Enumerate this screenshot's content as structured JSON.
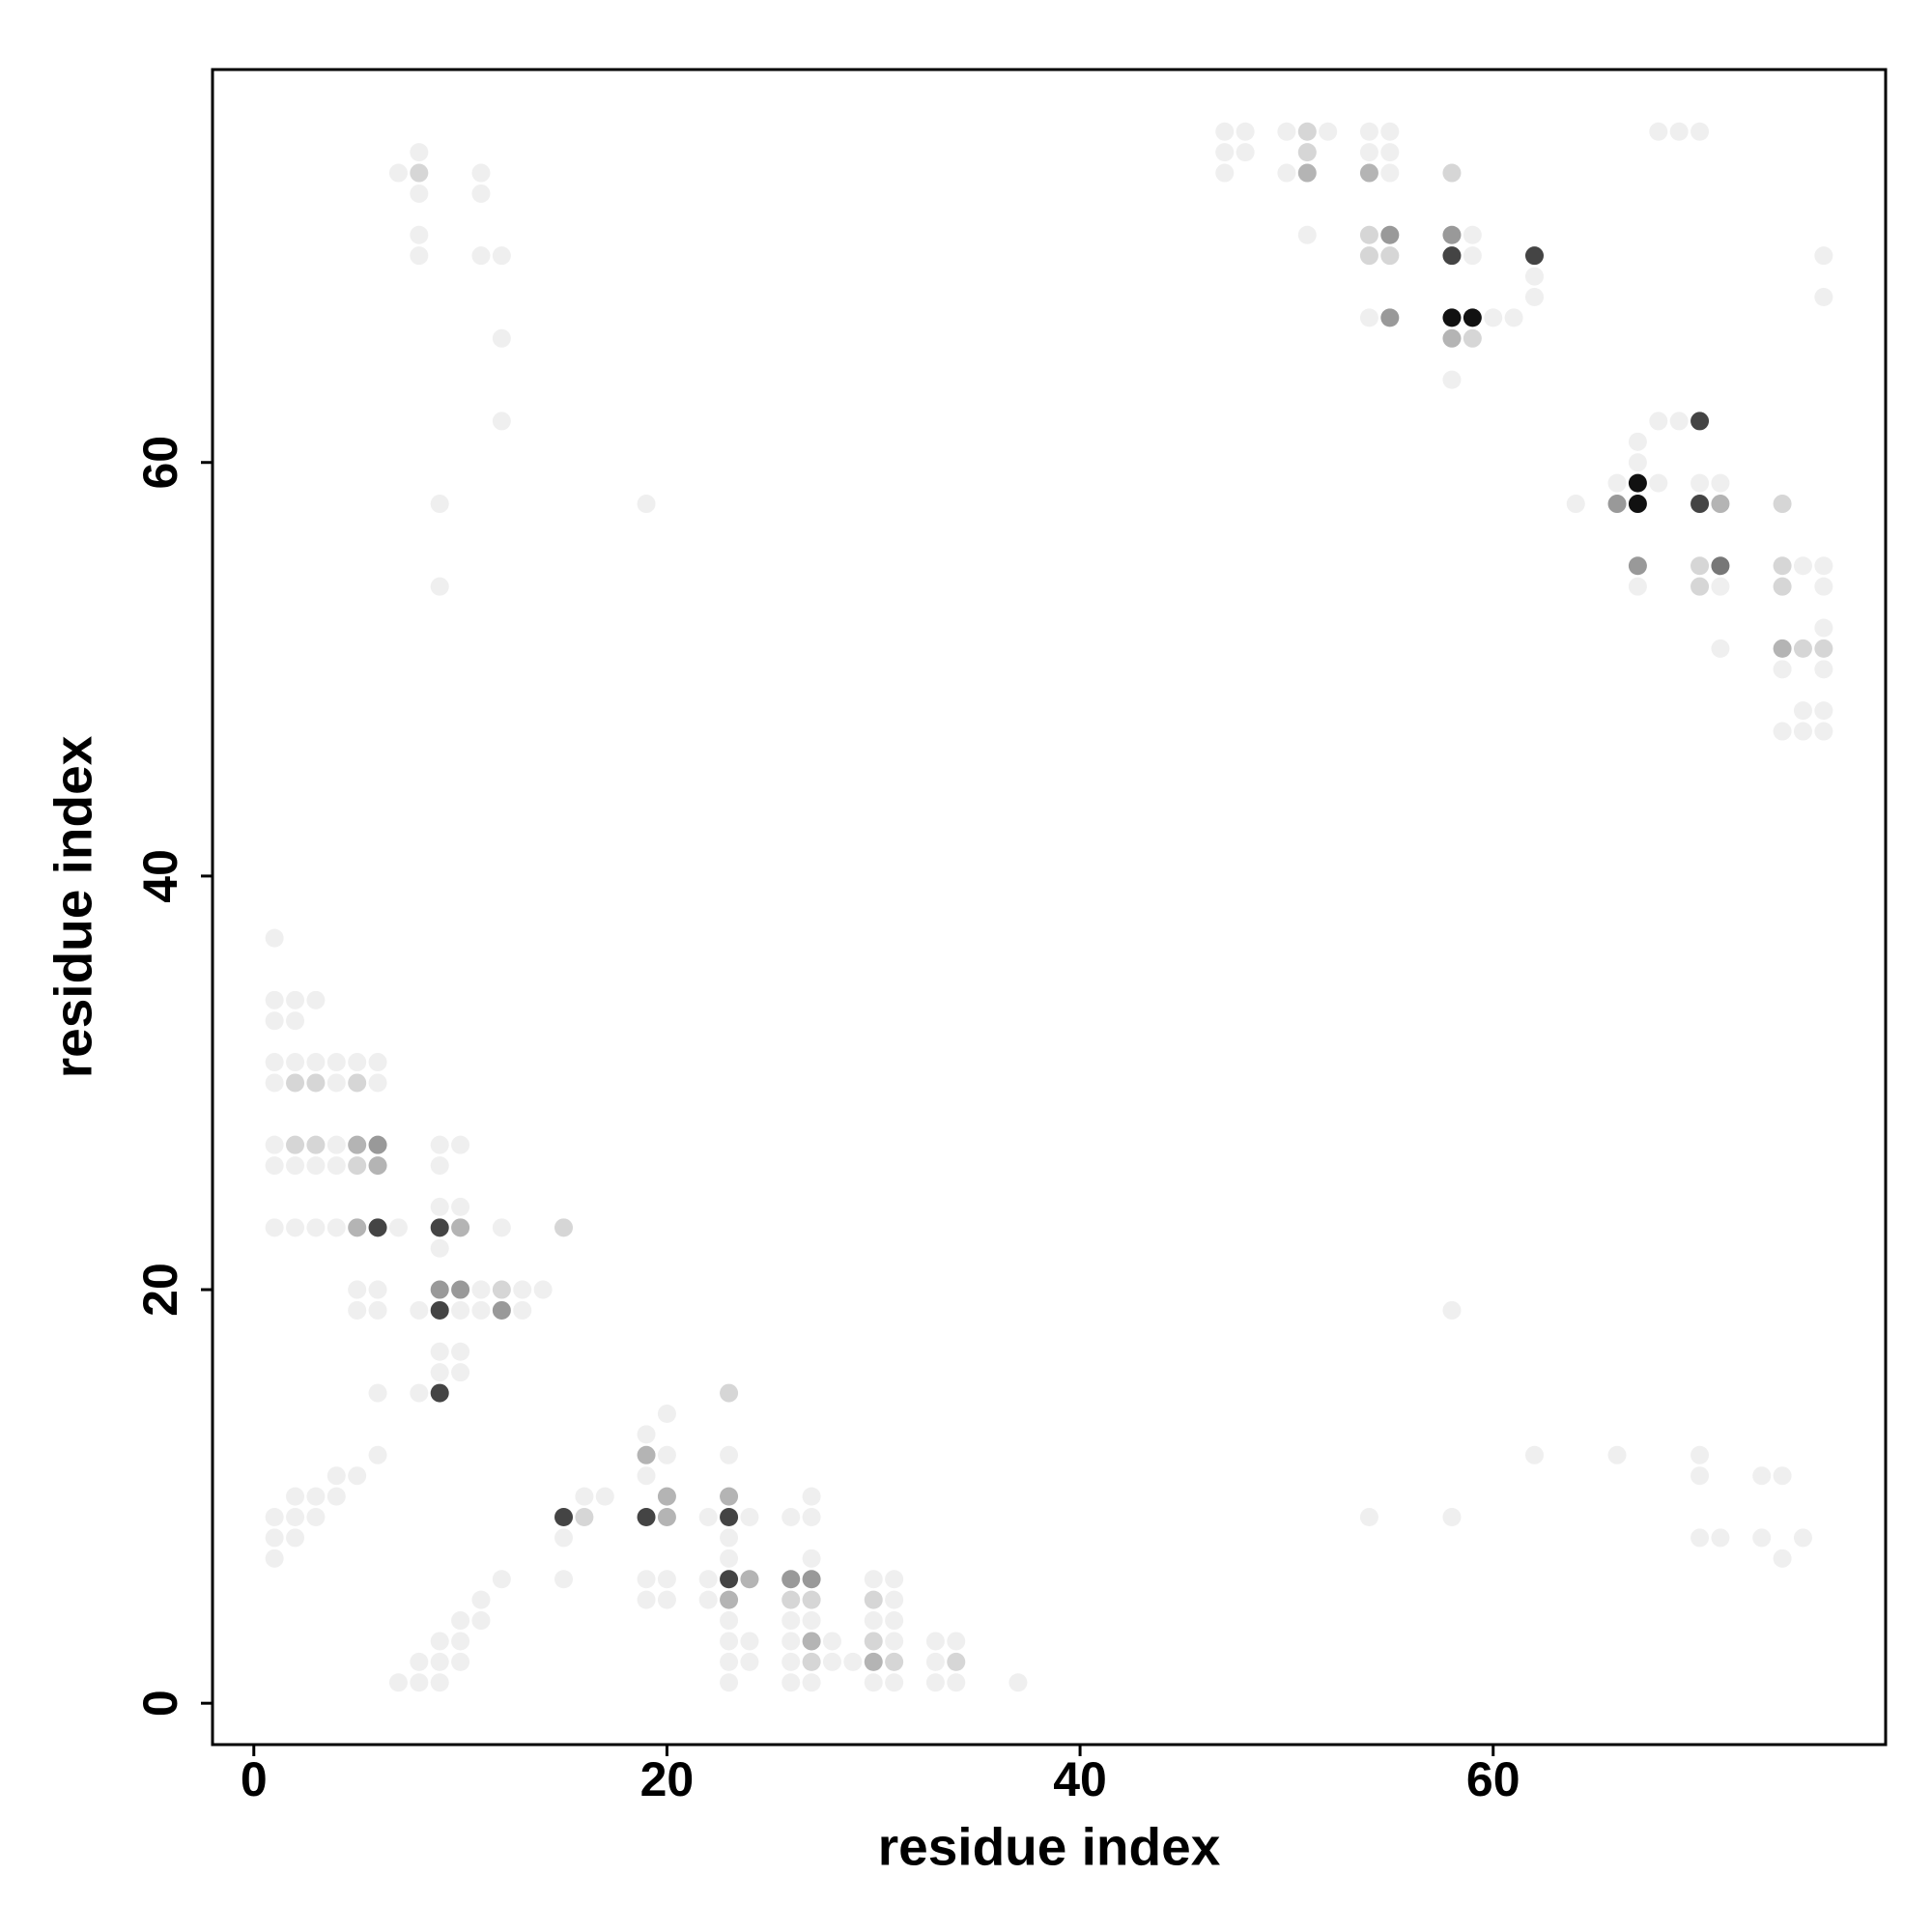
{
  "chart_data": {
    "type": "scatter",
    "xlabel": "residue index",
    "ylabel": "residue index",
    "xlim": [
      -2,
      79
    ],
    "ylim": [
      -2,
      79
    ],
    "xticks": [
      0,
      20,
      40,
      60
    ],
    "yticks": [
      0,
      20,
      40,
      60
    ],
    "grid": false,
    "series": [
      {
        "color": "#efefef",
        "x": [
          1,
          2,
          3,
          1,
          2,
          1,
          2,
          3,
          4,
          5,
          6,
          1,
          4,
          6,
          1,
          4,
          1,
          2,
          3,
          4,
          1,
          2,
          3,
          4,
          5,
          6,
          5,
          6,
          8,
          10,
          11,
          13,
          11,
          13,
          14,
          9,
          10,
          9,
          9,
          10,
          12,
          7,
          9,
          9,
          10,
          9,
          10,
          8,
          6,
          1,
          1,
          2,
          3,
          1,
          2,
          1,
          2,
          3,
          4,
          4,
          5,
          6,
          16,
          17,
          15,
          15,
          19,
          20,
          19,
          20,
          19,
          20,
          19,
          20,
          22,
          24,
          23,
          23,
          23,
          22,
          22,
          23,
          23,
          23,
          23,
          24,
          24,
          26,
          27,
          27,
          26,
          26,
          26,
          26,
          27,
          27,
          27,
          28,
          28,
          29,
          30,
          30,
          30,
          31,
          31,
          31,
          31,
          31,
          33,
          33,
          33,
          34,
          34,
          37,
          7,
          8,
          9,
          8,
          9,
          10,
          9,
          10,
          10,
          11,
          11,
          12,
          7,
          8,
          8,
          11,
          11,
          8,
          8,
          11,
          12,
          12,
          12,
          9,
          9,
          19,
          47,
          48,
          47,
          48,
          47,
          50,
          52,
          50,
          51,
          54,
          55,
          54,
          55,
          55,
          59,
          59,
          54,
          60,
          61,
          58,
          62,
          62,
          68,
          69,
          70,
          76,
          76,
          67,
          67,
          68,
          69,
          66,
          68,
          64,
          67,
          70,
          71,
          71,
          71,
          75,
          76,
          76,
          74,
          76,
          76,
          75,
          76,
          74,
          75,
          76,
          62,
          66,
          70,
          70,
          73,
          74,
          70,
          71,
          73,
          75,
          74,
          54,
          58,
          58
        ],
        "y": [
          34,
          34,
          34,
          33,
          33,
          31,
          31,
          31,
          31,
          31,
          31,
          30,
          30,
          30,
          27,
          27,
          26,
          26,
          26,
          26,
          23,
          23,
          23,
          23,
          20,
          20,
          19,
          19,
          19,
          19,
          19,
          19,
          20,
          20,
          20,
          27,
          27,
          26,
          24,
          24,
          23,
          23,
          22,
          17,
          17,
          16,
          16,
          15,
          15,
          37,
          9,
          9,
          9,
          8,
          8,
          7,
          10,
          10,
          10,
          11,
          11,
          12,
          10,
          10,
          8,
          6,
          13,
          14,
          11,
          12,
          6,
          6,
          5,
          5,
          9,
          9,
          12,
          8,
          7,
          6,
          5,
          4,
          3,
          2,
          1,
          3,
          2,
          9,
          9,
          10,
          4,
          3,
          2,
          1,
          1,
          4,
          7,
          3,
          2,
          2,
          6,
          4,
          1,
          6,
          5,
          4,
          3,
          1,
          3,
          2,
          1,
          3,
          1,
          1,
          1,
          1,
          1,
          2,
          2,
          2,
          3,
          3,
          4,
          4,
          5,
          6,
          74,
          73,
          75,
          74,
          73,
          71,
          70,
          70,
          70,
          66,
          62,
          58,
          54,
          58,
          76,
          76,
          75,
          75,
          74,
          76,
          76,
          74,
          71,
          76,
          76,
          75,
          75,
          74,
          71,
          70,
          67,
          67,
          67,
          64,
          69,
          68,
          76,
          76,
          76,
          70,
          68,
          61,
          60,
          62,
          62,
          59,
          59,
          58,
          54,
          59,
          59,
          54,
          51,
          55,
          55,
          54,
          50,
          52,
          50,
          48,
          48,
          47,
          47,
          47,
          12,
          12,
          12,
          11,
          11,
          11,
          8,
          8,
          8,
          8,
          7,
          9,
          9,
          19
        ]
      },
      {
        "color": "#d6d6d6",
        "x": [
          30,
          31,
          34,
          26,
          27,
          23,
          15,
          70,
          70,
          74,
          76,
          75,
          74,
          74,
          54,
          54,
          55,
          59,
          58,
          51,
          51,
          2,
          3,
          5,
          2,
          3,
          5,
          12,
          16,
          27,
          30,
          8
        ],
        "y": [
          3,
          2,
          2,
          5,
          5,
          15,
          23,
          55,
          54,
          54,
          51,
          51,
          58,
          55,
          71,
          70,
          70,
          66,
          74,
          75,
          76,
          30,
          30,
          30,
          27,
          27,
          26,
          20,
          9,
          2,
          5,
          74
        ]
      },
      {
        "color": "#b4b4b4",
        "x": [
          58,
          54,
          51,
          6,
          5,
          10,
          20,
          20,
          19,
          23,
          23,
          24,
          27,
          30,
          71,
          74,
          5
        ],
        "y": [
          66,
          74,
          74,
          26,
          23,
          23,
          10,
          9,
          12,
          10,
          5,
          6,
          3,
          2,
          58,
          51,
          27
        ]
      },
      {
        "color": "#999999",
        "x": [
          55,
          55,
          67,
          66,
          9,
          10,
          12,
          6,
          26,
          27,
          58
        ],
        "y": [
          71,
          67,
          55,
          58,
          20,
          20,
          19,
          27,
          6,
          6,
          71
        ]
      },
      {
        "color": "#777777",
        "x": [
          71
        ],
        "y": [
          55
        ]
      },
      {
        "color": "#444444",
        "x": [
          62,
          58,
          70,
          70,
          6,
          9,
          9,
          9,
          15,
          19,
          23,
          23
        ],
        "y": [
          70,
          70,
          62,
          58,
          23,
          23,
          19,
          15,
          9,
          9,
          9,
          6
        ]
      },
      {
        "color": "#111111",
        "x": [
          58,
          59,
          67,
          67
        ],
        "y": [
          67,
          67,
          59,
          58
        ]
      }
    ]
  }
}
